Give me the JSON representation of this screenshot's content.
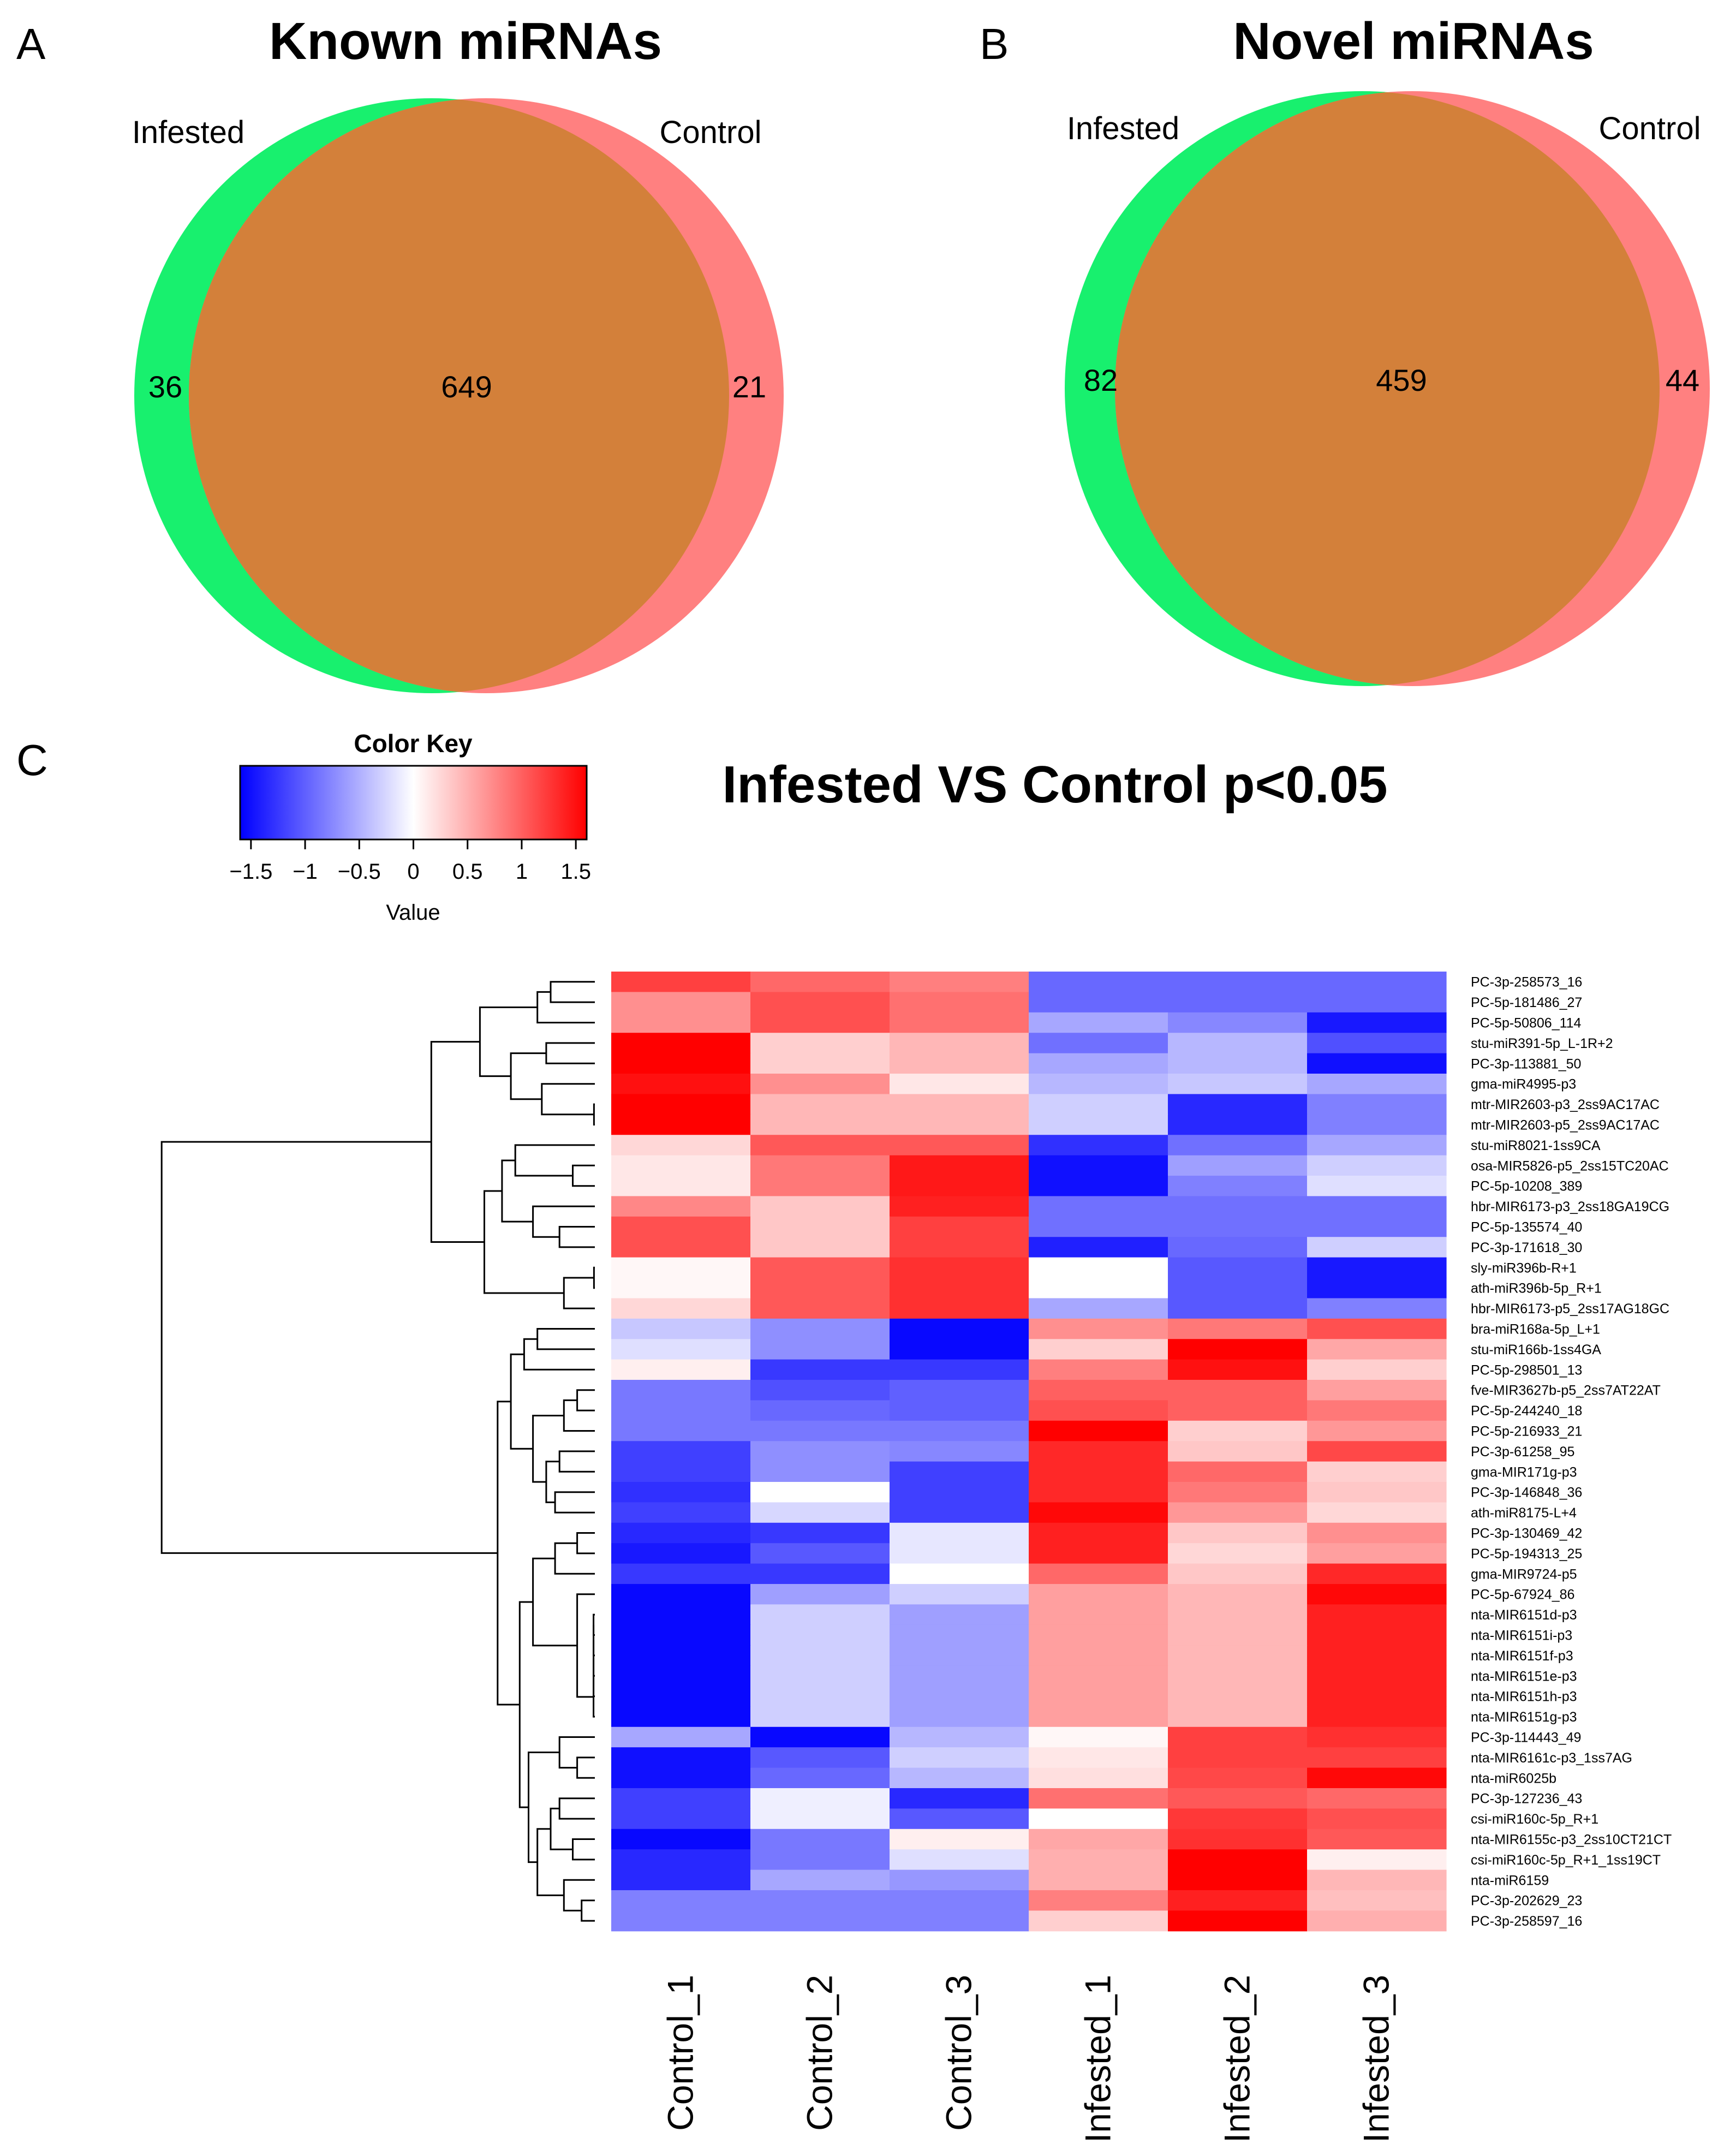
{
  "panels": {
    "a": {
      "letter": "A"
    },
    "b": {
      "letter": "B"
    },
    "c": {
      "letter": "C"
    }
  },
  "colors": {
    "infested": "#18F06E",
    "control": "#FF8080",
    "overlap": "#D3803A",
    "low": "#0000FF",
    "mid": "#FFFFFF",
    "high": "#FF0000"
  },
  "chart_data": [
    {
      "type": "venn",
      "panel": "A",
      "title": "Known miRNAs",
      "sets": [
        {
          "name": "Infested",
          "only": "36"
        },
        {
          "name": "Control",
          "only": "21"
        }
      ],
      "overlap": "649"
    },
    {
      "type": "venn",
      "panel": "B",
      "title": "Novel miRNAs",
      "sets": [
        {
          "name": "Infested",
          "only": "82"
        },
        {
          "name": "Control",
          "only": "44"
        }
      ],
      "overlap": "459"
    },
    {
      "type": "heatmap",
      "panel": "C",
      "title": "Infested VS Control  p<0.05",
      "color_key": {
        "title": "Color Key",
        "xlabel": "Value",
        "range": [
          -1.6,
          1.6
        ],
        "ticks": [
          -1.5,
          -1,
          -0.5,
          0,
          0.5,
          1,
          1.5
        ],
        "tick_labels": [
          "−1.5",
          "−1",
          "−0.5",
          "0",
          "0.5",
          "1",
          "1.5"
        ]
      },
      "columns": [
        "Control_1",
        "Control_2",
        "Control_3",
        "Infested_1",
        "Infested_2",
        "Infested_3"
      ],
      "rows": [
        "PC-3p-258573_16",
        "PC-5p-181486_27",
        "PC-5p-50806_114",
        "stu-miR391-5p_L-1R+2",
        "PC-3p-113881_50",
        "gma-miR4995-p3",
        "mtr-MIR2603-p3_2ss9AC17AC",
        "mtr-MIR2603-p5_2ss9AC17AC",
        "stu-miR8021-1ss9CA",
        "osa-MIR5826-p5_2ss15TC20AC",
        "PC-5p-10208_389",
        "hbr-MIR6173-p3_2ss18GA19CG",
        "PC-5p-135574_40",
        "PC-3p-171618_30",
        "sly-miR396b-R+1",
        "ath-miR396b-5p_R+1",
        "hbr-MIR6173-p5_2ss17AG18GC",
        "bra-miR168a-5p_L+1",
        "stu-miR166b-1ss4GA",
        "PC-5p-298501_13",
        "fve-MIR3627b-p5_2ss7AT22AT",
        "PC-5p-244240_18",
        "PC-5p-216933_21",
        "PC-3p-61258_95",
        "gma-MIR171g-p3",
        "PC-3p-146848_36",
        "ath-miR8175-L+4",
        "PC-3p-130469_42",
        "PC-5p-194313_25",
        "gma-MIR9724-p5",
        "PC-5p-67924_86",
        "nta-MIR6151d-p3",
        "nta-MIR6151i-p3",
        "nta-MIR6151f-p3",
        "nta-MIR6151e-p3",
        "nta-MIR6151h-p3",
        "nta-MIR6151g-p3",
        "PC-3p-114443_49",
        "nta-MIR6161c-p3_1ss7AG",
        "nta-miR6025b",
        "PC-3p-127236_43",
        "csi-miR160c-5p_R+1",
        "nta-MIR6155c-p3_2ss10CT21CT",
        "csi-miR160c-5p_R+1_1ss19CT",
        "nta-miR6159",
        "PC-3p-202629_23",
        "PC-3p-258597_16"
      ],
      "values": [
        [
          1.2,
          0.95,
          0.8,
          -0.95,
          -0.95,
          -0.95
        ],
        [
          0.7,
          1.1,
          0.9,
          -0.95,
          -0.95,
          -0.95
        ],
        [
          0.7,
          1.1,
          0.9,
          -0.55,
          -0.75,
          -1.45
        ],
        [
          1.6,
          0.3,
          0.45,
          -0.9,
          -0.45,
          -1.1
        ],
        [
          1.6,
          0.3,
          0.45,
          -0.55,
          -0.45,
          -1.5
        ],
        [
          1.5,
          0.7,
          0.15,
          -0.45,
          -0.35,
          -0.55
        ],
        [
          1.6,
          0.45,
          0.45,
          -0.3,
          -1.35,
          -0.8
        ],
        [
          1.6,
          0.45,
          0.45,
          -0.3,
          -1.35,
          -0.8
        ],
        [
          0.25,
          1.05,
          1.05,
          -1.3,
          -0.9,
          -0.55
        ],
        [
          0.15,
          0.85,
          1.45,
          -1.5,
          -0.6,
          -0.3
        ],
        [
          0.15,
          0.85,
          1.45,
          -1.5,
          -0.8,
          -0.2
        ],
        [
          0.75,
          0.35,
          1.4,
          -0.9,
          -0.9,
          -0.9
        ],
        [
          1.1,
          0.35,
          1.2,
          -0.9,
          -0.9,
          -0.9
        ],
        [
          1.1,
          0.35,
          1.2,
          -1.4,
          -0.95,
          -0.3
        ],
        [
          0.05,
          1.05,
          1.3,
          0.0,
          -1.05,
          -1.45
        ],
        [
          0.05,
          1.05,
          1.3,
          0.0,
          -1.05,
          -1.45
        ],
        [
          0.25,
          1.05,
          1.3,
          -0.55,
          -1.05,
          -0.8
        ],
        [
          -0.35,
          -0.7,
          -1.55,
          0.7,
          0.85,
          1.1
        ],
        [
          -0.2,
          -0.7,
          -1.55,
          0.3,
          1.6,
          0.55
        ],
        [
          0.1,
          -1.25,
          -1.25,
          0.8,
          1.5,
          0.3
        ],
        [
          -0.85,
          -1.1,
          -1.0,
          1.0,
          1.0,
          0.6
        ],
        [
          -0.85,
          -0.95,
          -1.0,
          1.1,
          1.0,
          0.85
        ],
        [
          -0.85,
          -0.85,
          -0.85,
          1.6,
          0.3,
          0.65
        ],
        [
          -1.2,
          -0.7,
          -0.75,
          1.35,
          0.35,
          1.15
        ],
        [
          -1.2,
          -0.7,
          -1.2,
          1.35,
          0.95,
          0.3
        ],
        [
          -1.3,
          0.0,
          -1.2,
          1.35,
          0.85,
          0.35
        ],
        [
          -1.2,
          -0.25,
          -1.2,
          1.55,
          0.65,
          0.25
        ],
        [
          -1.35,
          -1.25,
          -0.15,
          1.4,
          0.35,
          0.7
        ],
        [
          -1.45,
          -1.05,
          -0.15,
          1.4,
          0.25,
          0.6
        ],
        [
          -1.25,
          -1.25,
          0.0,
          0.95,
          0.35,
          1.35
        ],
        [
          -1.55,
          -0.6,
          -0.3,
          0.6,
          0.45,
          1.55
        ],
        [
          -1.55,
          -0.3,
          -0.6,
          0.6,
          0.45,
          1.4
        ],
        [
          -1.55,
          -0.3,
          -0.6,
          0.6,
          0.45,
          1.4
        ],
        [
          -1.55,
          -0.3,
          -0.6,
          0.6,
          0.45,
          1.4
        ],
        [
          -1.55,
          -0.3,
          -0.6,
          0.6,
          0.45,
          1.4
        ],
        [
          -1.55,
          -0.3,
          -0.6,
          0.6,
          0.45,
          1.4
        ],
        [
          -1.55,
          -0.3,
          -0.6,
          0.6,
          0.45,
          1.4
        ],
        [
          -0.55,
          -1.55,
          -0.45,
          0.05,
          1.2,
          1.3
        ],
        [
          -1.5,
          -1.05,
          -0.3,
          0.15,
          1.2,
          1.2
        ],
        [
          -1.5,
          -0.95,
          -0.45,
          0.2,
          1.15,
          1.55
        ],
        [
          -1.2,
          -0.1,
          -1.35,
          0.9,
          1.05,
          0.95
        ],
        [
          -1.2,
          -0.1,
          -1.05,
          0.0,
          1.25,
          1.1
        ],
        [
          -1.55,
          -0.85,
          0.1,
          0.55,
          1.3,
          1.05
        ],
        [
          -1.35,
          -0.85,
          -0.2,
          0.5,
          1.6,
          0.1
        ],
        [
          -1.35,
          -0.55,
          -0.65,
          0.5,
          1.6,
          0.45
        ],
        [
          -0.8,
          -0.8,
          -0.8,
          0.8,
          1.4,
          0.4
        ],
        [
          -0.8,
          -0.8,
          -0.8,
          0.3,
          1.6,
          0.5
        ]
      ]
    }
  ]
}
